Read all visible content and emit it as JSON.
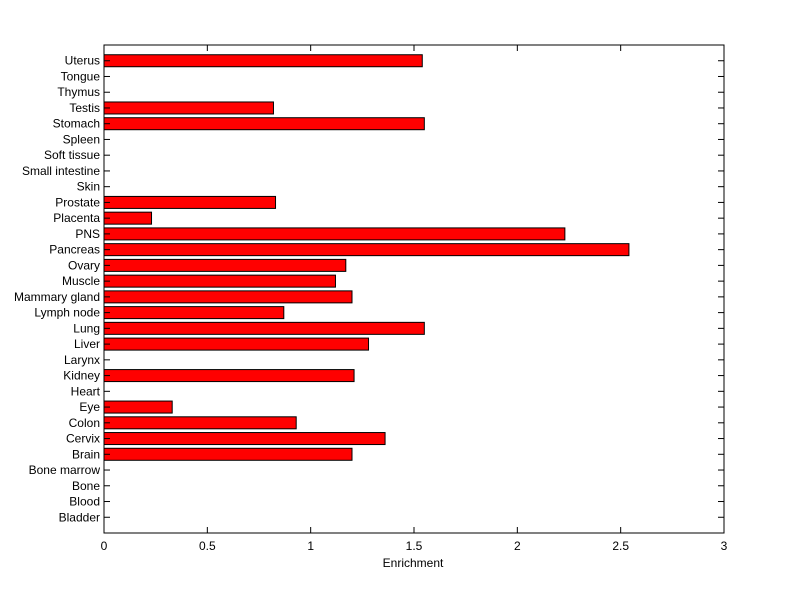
{
  "chart_data": {
    "type": "bar",
    "orientation": "horizontal",
    "title": "",
    "xlabel": "Enrichment",
    "ylabel": "",
    "xlim": [
      0,
      3
    ],
    "xticks": [
      0,
      0.5,
      1,
      1.5,
      2,
      2.5,
      3
    ],
    "xtick_labels": [
      "0",
      "0.5",
      "1",
      "1.5",
      "2",
      "2.5",
      "3"
    ],
    "grid": false,
    "legend": "none",
    "bar_color": "#ff0000",
    "bar_edge_color": "#000000",
    "categories": [
      "Bladder",
      "Blood",
      "Bone",
      "Bone marrow",
      "Brain",
      "Cervix",
      "Colon",
      "Eye",
      "Heart",
      "Kidney",
      "Larynx",
      "Liver",
      "Lung",
      "Lymph node",
      "Mammary gland",
      "Muscle",
      "Ovary",
      "Pancreas",
      "PNS",
      "Placenta",
      "Prostate",
      "Skin",
      "Small intestine",
      "Soft tissue",
      "Spleen",
      "Stomach",
      "Testis",
      "Thymus",
      "Tongue",
      "Uterus"
    ],
    "values": [
      0,
      0,
      0,
      0,
      1.2,
      1.36,
      0.93,
      0.33,
      0,
      1.21,
      0,
      1.28,
      1.55,
      0.87,
      1.2,
      1.12,
      1.17,
      2.54,
      2.23,
      0.23,
      0.83,
      0,
      0,
      0,
      0,
      1.55,
      0.82,
      0,
      0,
      1.54
    ]
  }
}
